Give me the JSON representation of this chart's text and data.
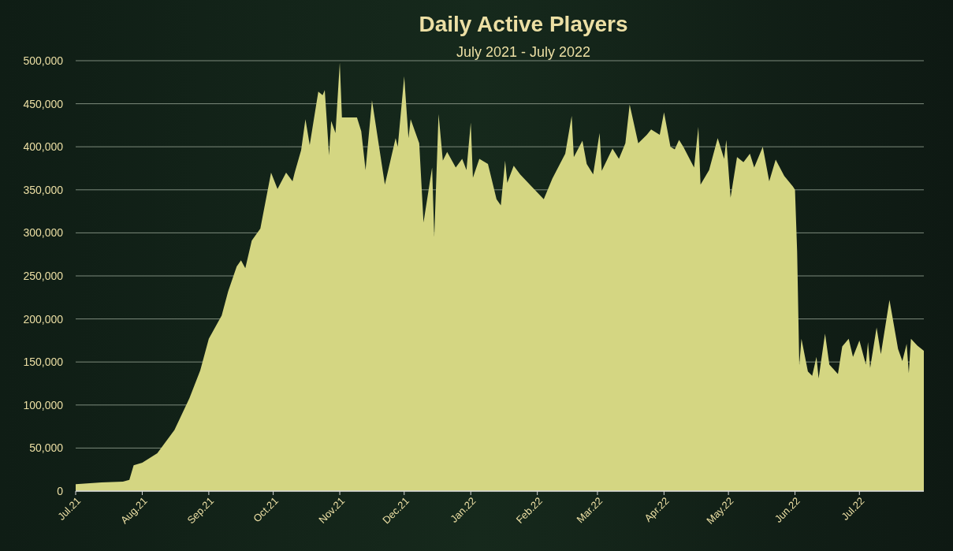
{
  "chart_data": {
    "type": "area",
    "title": "Daily Active Players",
    "subtitle": "July 2021 - July 2022",
    "color": "#d4d682",
    "grid": "y",
    "xlim": [
      "2021-07-01",
      "2022-07-31"
    ],
    "xticks": [
      {
        "value": "2021-07-01",
        "label": "Jul.21"
      },
      {
        "value": "2021-08-01",
        "label": "Aug.21"
      },
      {
        "value": "2021-09-01",
        "label": "Sep.21"
      },
      {
        "value": "2021-10-01",
        "label": "Oct.21"
      },
      {
        "value": "2021-11-01",
        "label": "Nov.21"
      },
      {
        "value": "2021-12-01",
        "label": "Dec.21"
      },
      {
        "value": "2022-01-01",
        "label": "Jan.22"
      },
      {
        "value": "2022-02-01",
        "label": "Feb.22"
      },
      {
        "value": "2022-03-01",
        "label": "Mar.22"
      },
      {
        "value": "2022-04-01",
        "label": "Apr.22"
      },
      {
        "value": "2022-05-01",
        "label": "May.22"
      },
      {
        "value": "2022-06-01",
        "label": "Jun.22"
      },
      {
        "value": "2022-07-01",
        "label": "Jul.22"
      }
    ],
    "ylim": [
      0,
      500000
    ],
    "yticks": [
      0,
      {
        "value": 50000,
        "label": "50,000"
      },
      {
        "value": 100000,
        "label": "100,000"
      },
      {
        "value": 150000,
        "label": "150,000"
      },
      {
        "value": 200000,
        "label": "200,000"
      },
      {
        "value": 250000,
        "label": "250,000"
      },
      {
        "value": 300000,
        "label": "300,000"
      },
      {
        "value": 350000,
        "label": "350,000"
      },
      {
        "value": 400000,
        "label": "400,000"
      },
      {
        "value": 450000,
        "label": "450,000"
      },
      {
        "value": 500000,
        "label": "500,000"
      }
    ],
    "x": [
      "2021-07-01",
      "2021-07-13",
      "2021-07-23",
      "2021-07-26",
      "2021-07-28",
      "2021-08-01",
      "2021-08-08",
      "2021-08-16",
      "2021-08-23",
      "2021-08-28",
      "2021-09-01",
      "2021-09-07",
      "2021-09-10",
      "2021-09-14",
      "2021-09-16",
      "2021-09-18",
      "2021-09-21",
      "2021-09-25",
      "2021-09-30",
      "2021-10-03",
      "2021-10-07",
      "2021-10-10",
      "2021-10-11",
      "2021-10-14",
      "2021-10-16",
      "2021-10-18",
      "2021-10-22",
      "2021-10-24",
      "2021-10-25",
      "2021-10-27",
      "2021-10-28",
      "2021-10-30",
      "2021-11-01",
      "2021-11-02",
      "2021-11-09",
      "2021-11-11",
      "2021-11-13",
      "2021-11-16",
      "2021-11-22",
      "2021-11-27",
      "2021-11-28",
      "2021-12-01",
      "2021-12-03",
      "2021-12-04",
      "2021-12-08",
      "2021-12-10",
      "2021-12-14",
      "2021-12-15",
      "2021-12-17",
      "2021-12-19",
      "2021-12-21",
      "2021-12-25",
      "2021-12-28",
      "2021-12-30",
      "2022-01-01",
      "2022-01-02",
      "2022-01-05",
      "2022-01-09",
      "2022-01-13",
      "2022-01-15",
      "2022-01-17",
      "2022-01-18",
      "2022-01-21",
      "2022-01-24",
      "2022-01-30",
      "2022-02-04",
      "2022-02-08",
      "2022-02-14",
      "2022-02-17",
      "2022-02-18",
      "2022-02-22",
      "2022-02-24",
      "2022-02-27",
      "2022-03-02",
      "2022-03-03",
      "2022-03-08",
      "2022-03-11",
      "2022-03-14",
      "2022-03-16",
      "2022-03-20",
      "2022-03-24",
      "2022-03-26",
      "2022-03-30",
      "2022-04-01",
      "2022-04-04",
      "2022-04-06",
      "2022-04-08",
      "2022-04-10",
      "2022-04-15",
      "2022-04-17",
      "2022-04-18",
      "2022-04-22",
      "2022-04-26",
      "2022-04-29",
      "2022-04-30",
      "2022-05-02",
      "2022-05-05",
      "2022-05-08",
      "2022-05-11",
      "2022-05-13",
      "2022-05-17",
      "2022-05-20",
      "2022-05-23",
      "2022-05-27",
      "2022-05-31",
      "2022-06-01",
      "2022-06-02",
      "2022-06-03",
      "2022-06-04",
      "2022-06-07",
      "2022-06-09",
      "2022-06-11",
      "2022-06-12",
      "2022-06-15",
      "2022-06-17",
      "2022-06-21",
      "2022-06-23",
      "2022-06-26",
      "2022-06-28",
      "2022-07-01",
      "2022-07-04",
      "2022-07-05",
      "2022-07-06",
      "2022-07-09",
      "2022-07-11",
      "2022-07-15",
      "2022-07-19",
      "2022-07-21",
      "2022-07-23",
      "2022-07-24",
      "2022-07-25",
      "2022-07-28",
      "2022-07-31"
    ],
    "values": [
      8000,
      10000,
      11000,
      13000,
      30000,
      33000,
      44000,
      71000,
      108000,
      140000,
      177000,
      204000,
      232000,
      261000,
      268000,
      259000,
      291000,
      305000,
      370000,
      351000,
      370000,
      360000,
      370000,
      396000,
      432000,
      402000,
      464000,
      460000,
      466000,
      390000,
      430000,
      416000,
      498000,
      434000,
      434000,
      418000,
      373000,
      454000,
      356000,
      410000,
      400000,
      482000,
      410000,
      432000,
      404000,
      312000,
      376000,
      295000,
      438000,
      384000,
      394000,
      376000,
      386000,
      373000,
      428000,
      364000,
      386000,
      380000,
      339000,
      332000,
      384000,
      358000,
      378000,
      368000,
      352000,
      339000,
      363000,
      392000,
      436000,
      388000,
      407000,
      380000,
      368000,
      416000,
      372000,
      398000,
      386000,
      404000,
      449000,
      404000,
      414000,
      420000,
      414000,
      440000,
      400000,
      397000,
      408000,
      400000,
      376000,
      423000,
      356000,
      373000,
      410000,
      386000,
      408000,
      341000,
      388000,
      382000,
      392000,
      376000,
      400000,
      360000,
      385000,
      366000,
      354000,
      350000,
      278000,
      146000,
      177000,
      139000,
      134000,
      156000,
      131000,
      183000,
      147000,
      136000,
      168000,
      177000,
      156000,
      175000,
      147000,
      173000,
      143000,
      190000,
      159000,
      222000,
      165000,
      151000,
      171000,
      137000,
      177000,
      169000,
      163000
    ]
  }
}
